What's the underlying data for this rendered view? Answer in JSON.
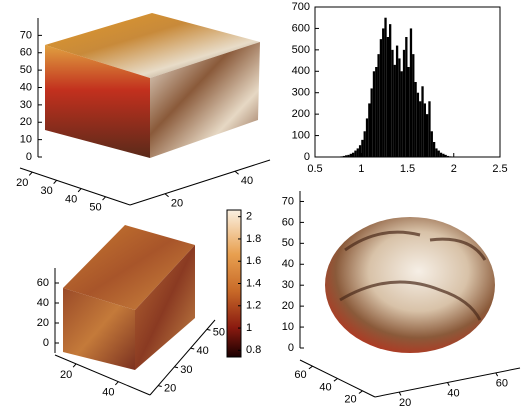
{
  "chart_data": [
    {
      "type": "cube",
      "zlim": [
        0,
        80
      ],
      "zticks": [
        0,
        10,
        20,
        30,
        40,
        50,
        60,
        70
      ],
      "xlim": [
        15,
        60
      ],
      "xticks": [
        20,
        30,
        40,
        50
      ],
      "ylim": [
        10,
        50
      ],
      "yticks": [
        20,
        40
      ]
    },
    {
      "type": "histogram",
      "color": "#000000",
      "bins": [
        0.75,
        0.775,
        0.8,
        0.825,
        0.85,
        0.875,
        0.9,
        0.925,
        0.95,
        0.975,
        1,
        1.025,
        1.05,
        1.075,
        1.1,
        1.125,
        1.15,
        1.175,
        1.2,
        1.225,
        1.25,
        1.275,
        1.3,
        1.325,
        1.35,
        1.375,
        1.4,
        1.425,
        1.45,
        1.475,
        1.5,
        1.525,
        1.55,
        1.575,
        1.6,
        1.625,
        1.65,
        1.675,
        1.7,
        1.725,
        1.75,
        1.775,
        1.8,
        1.825,
        1.85,
        1.875,
        1.9,
        1.925,
        1.95,
        1.975,
        2,
        2.025,
        2.05
      ],
      "counts": [
        2,
        3,
        5,
        8,
        10,
        15,
        20,
        30,
        40,
        55,
        80,
        120,
        180,
        250,
        320,
        400,
        420,
        480,
        550,
        600,
        650,
        560,
        620,
        500,
        430,
        520,
        460,
        400,
        500,
        560,
        420,
        600,
        480,
        350,
        300,
        260,
        330,
        250,
        200,
        260,
        120,
        70,
        40,
        30,
        20,
        15,
        10,
        5,
        3,
        2,
        1,
        1
      ],
      "xlim": [
        0.5,
        2.5
      ],
      "xticks": [
        0.5,
        1,
        1.5,
        2,
        2.5
      ],
      "ylim": [
        0,
        700
      ],
      "yticks": [
        0,
        100,
        200,
        300,
        400,
        500,
        600,
        700
      ]
    },
    {
      "type": "cube",
      "zlim": [
        -10,
        75
      ],
      "zticks": [
        0,
        20,
        40,
        60
      ],
      "xlim": [
        10,
        55
      ],
      "xticks": [
        20,
        40
      ],
      "ylim": [
        15,
        55
      ],
      "yticks": [
        20,
        30,
        40,
        50
      ],
      "colorbar": {
        "clim": [
          0.74,
          2.06
        ],
        "ticks": [
          0.8,
          1,
          1.2,
          1.4,
          1.6,
          1.8,
          2
        ]
      }
    },
    {
      "type": "sphere",
      "zlim": [
        0,
        75
      ],
      "zticks": [
        0,
        10,
        20,
        30,
        40,
        50,
        60,
        70
      ],
      "xlim": [
        10,
        70
      ],
      "xticks": [
        20,
        40,
        60
      ],
      "ylim": [
        10,
        70
      ],
      "yticks": [
        20,
        40,
        60
      ]
    }
  ]
}
